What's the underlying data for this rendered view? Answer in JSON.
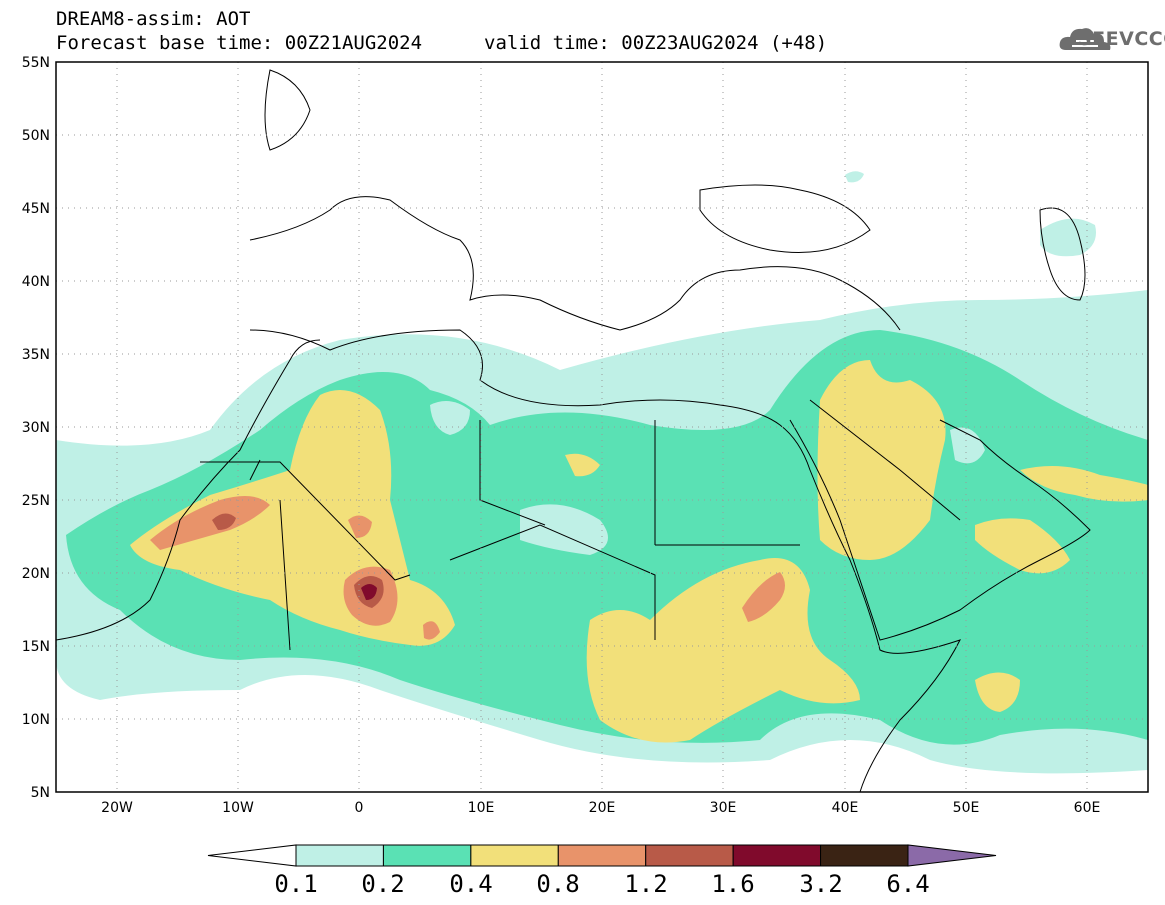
{
  "header": {
    "title": "DREAM8-assim: AOT",
    "base_time": "Forecast base time: 00Z21AUG2024",
    "valid_time": "valid time: 00Z23AUG2024 (+48)"
  },
  "logo": {
    "text": "SEEVCCC",
    "color": "#6e6e6e"
  },
  "map": {
    "lat_labels": [
      "55N",
      "50N",
      "45N",
      "40N",
      "35N",
      "30N",
      "25N",
      "20N",
      "15N",
      "10N",
      "5N"
    ],
    "lon_labels": [
      "20W",
      "10W",
      "0",
      "10E",
      "20E",
      "30E",
      "40E",
      "50E",
      "60E"
    ],
    "lat_range": [
      5,
      55
    ],
    "lon_range": [
      -25,
      65
    ],
    "grid": "dotted"
  },
  "colorbar": {
    "labels": [
      "0.1",
      "0.2",
      "0.4",
      "0.8",
      "1.2",
      "1.6",
      "3.2",
      "6.4"
    ],
    "colors": [
      "#bff0e6",
      "#5ae1b4",
      "#f2e07a",
      "#e8936a",
      "#b85a48",
      "#800a2c",
      "#3a2314",
      "#8b6aa8"
    ],
    "under_color": "#ffffff"
  }
}
